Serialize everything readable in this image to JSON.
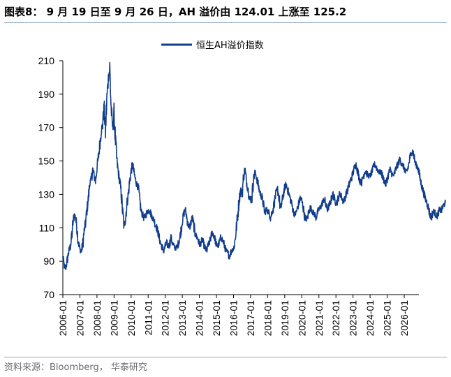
{
  "title": "图表8： 9 月 19 日至 9 月 26 日，AH 溢价由 124.01 上涨至 125.2",
  "source": "资料来源：Bloomberg， 华泰研究",
  "colors": {
    "series": "#123d8a",
    "axis": "#000000",
    "rule": "#8fa9c9"
  },
  "chart_data": {
    "type": "line",
    "title": "",
    "xlabel": "",
    "ylabel": "",
    "ylim": [
      70,
      210
    ],
    "yticks": [
      70,
      90,
      110,
      130,
      150,
      170,
      190,
      210
    ],
    "grid": false,
    "legend_position": "top-center",
    "xticks": [
      "2006-01",
      "2007-01",
      "2008-01",
      "2009-01",
      "2010-01",
      "2011-01",
      "2012-01",
      "2013-01",
      "2014-01",
      "2015-01",
      "2016-01",
      "2017-01",
      "2018-01",
      "2019-01",
      "2020-01",
      "2021-01",
      "2022-01",
      "2023-01",
      "2024-01",
      "2025-01",
      "2026-01"
    ],
    "series": [
      {
        "name": "恒生AH溢价指数",
        "x_start": "2006-01",
        "x_step_months": 1,
        "values": [
          92,
          87,
          86,
          90,
          95,
          98,
          102,
          112,
          118,
          116,
          109,
          101,
          97,
          96,
          100,
          108,
          113,
          121,
          128,
          137,
          139,
          145,
          141,
          138,
          146,
          152,
          160,
          168,
          172,
          182,
          168,
          188,
          200,
          205,
          181,
          170,
          178,
          162,
          150,
          143,
          138,
          131,
          120,
          111,
          115,
          124,
          130,
          138,
          144,
          148,
          143,
          139,
          136,
          134,
          127,
          120,
          118,
          116,
          117,
          119,
          120,
          121,
          118,
          116,
          115,
          112,
          110,
          107,
          103,
          100,
          98,
          96,
          99,
          101,
          99,
          100,
          104,
          101,
          99,
          98,
          98,
          100,
          103,
          108,
          114,
          118,
          121,
          117,
          112,
          110,
          113,
          116,
          112,
          106,
          105,
          103,
          100,
          101,
          103,
          100,
          98,
          96,
          99,
          101,
          104,
          107,
          106,
          103,
          100,
          99,
          101,
          104,
          103,
          101,
          98,
          96,
          95,
          93,
          95,
          97,
          97,
          102,
          110,
          118,
          127,
          133,
          130,
          140,
          145,
          138,
          134,
          129,
          126,
          129,
          139,
          143,
          141,
          137,
          133,
          130,
          128,
          124,
          119,
          121,
          120,
          119,
          116,
          119,
          122,
          127,
          131,
          133,
          128,
          121,
          125,
          130,
          134,
          136,
          133,
          130,
          127,
          124,
          120,
          118,
          119,
          122,
          125,
          128,
          126,
          122,
          117,
          115,
          116,
          120,
          122,
          121,
          119,
          118,
          116,
          119,
          121,
          122,
          124,
          126,
          127,
          123,
          121,
          123,
          125,
          128,
          130,
          127,
          125,
          126,
          129,
          131,
          128,
          126,
          127,
          130,
          132,
          135,
          138,
          140,
          143,
          146,
          148,
          145,
          141,
          138,
          137,
          140,
          143,
          144,
          142,
          141,
          141,
          143,
          145,
          148,
          147,
          145,
          144,
          143,
          143,
          140,
          138,
          136,
          139,
          142,
          145,
          143,
          141,
          142,
          145,
          147,
          149,
          151,
          149,
          147,
          146,
          143,
          144,
          147,
          152,
          155,
          156,
          152,
          148,
          147,
          145,
          140,
          136,
          133,
          130,
          127,
          125,
          122,
          118,
          116,
          119,
          120,
          118,
          117,
          119,
          121,
          120,
          122,
          124,
          125
        ]
      }
    ]
  }
}
